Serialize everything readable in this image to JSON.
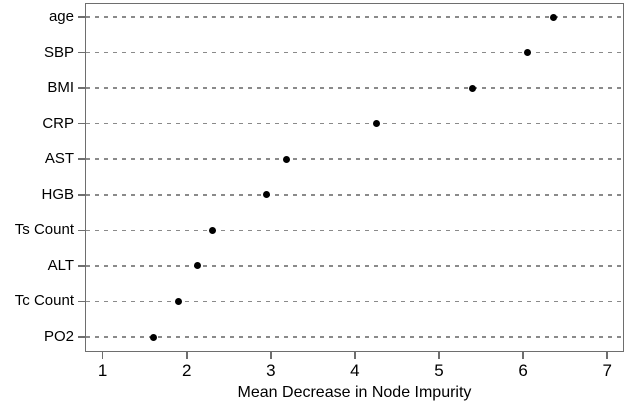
{
  "chart_data": {
    "type": "scatter",
    "subtype": "horizontal-dot-plot",
    "title": "",
    "xlabel": "Mean Decrease in Node Impurity",
    "ylabel": "",
    "categories": [
      "age",
      "SBP",
      "BMI",
      "CRP",
      "AST",
      "HGB",
      "Ts Count",
      "ALT",
      "Tc Count",
      "PO2"
    ],
    "values": [
      6.36,
      6.05,
      5.4,
      4.26,
      3.19,
      2.95,
      2.31,
      2.13,
      1.9,
      1.6
    ],
    "x_ticks": [
      1,
      2,
      3,
      4,
      5,
      6,
      7
    ],
    "xlim": [
      0.79,
      7.2
    ],
    "grid": "dashed-horizontal-per-category",
    "legend": "none",
    "point_color": "#000000",
    "gridline_color": "#8a8a8a",
    "frame_color": "#6e6e6e"
  }
}
